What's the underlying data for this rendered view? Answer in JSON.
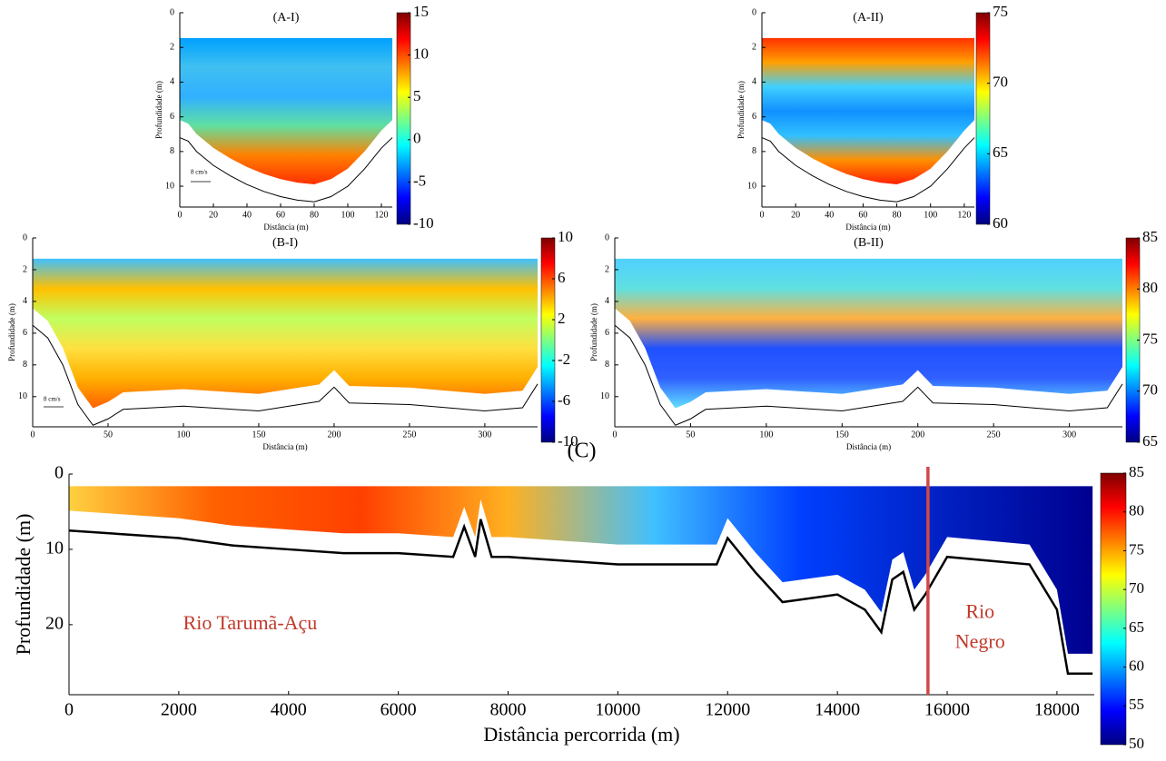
{
  "chart_data": [
    {
      "type": "heatmap",
      "title": "(A-I)",
      "xlabel": "Distância (m)",
      "ylabel": "Profundidade (m)",
      "xlim": [
        0,
        126.5
      ],
      "xticks": [
        0,
        20,
        40,
        60,
        80,
        100,
        120
      ],
      "ylim": [
        0,
        11.2
      ],
      "yticks": [
        0,
        2,
        4,
        6,
        8,
        10
      ],
      "colormap": "jet",
      "clim": [
        -10,
        15
      ],
      "cticks": [
        -10,
        -5,
        0,
        5,
        10,
        15
      ],
      "annotation": "8 cm/s",
      "bottom": {
        "x": [
          0,
          5,
          10,
          20,
          30,
          40,
          50,
          60,
          70,
          80,
          90,
          100,
          110,
          120,
          126.5
        ],
        "y": [
          7.2,
          7.4,
          8,
          8.8,
          9.4,
          9.9,
          10.3,
          10.6,
          10.8,
          10.9,
          10.6,
          10,
          9,
          7.8,
          7.2
        ]
      },
      "line_color": "#000000"
    },
    {
      "type": "heatmap",
      "title": "(A-II)",
      "xlabel": "Distância (m)",
      "ylabel": "Profundidade (m)",
      "xlim": [
        0,
        126
      ],
      "xticks": [
        0,
        20,
        40,
        60,
        80,
        100,
        120
      ],
      "ylim": [
        0,
        11.2
      ],
      "yticks": [
        0,
        2,
        4,
        6,
        8,
        10
      ],
      "colormap": "jet",
      "clim": [
        60,
        75
      ],
      "cticks": [
        60,
        65,
        70,
        75
      ],
      "bottom": {
        "x": [
          0,
          5,
          10,
          20,
          30,
          40,
          50,
          60,
          70,
          80,
          90,
          100,
          110,
          120,
          126
        ],
        "y": [
          7.2,
          7.4,
          8,
          8.8,
          9.4,
          9.9,
          10.3,
          10.6,
          10.8,
          10.9,
          10.6,
          10,
          9,
          7.8,
          7.2
        ]
      },
      "line_color": "#000000"
    },
    {
      "type": "heatmap",
      "title": "(B-I)",
      "xlabel": "Distância (m)",
      "ylabel": "Profundidade (m)",
      "xlim": [
        0,
        335
      ],
      "xticks": [
        0,
        50,
        100,
        150,
        200,
        250,
        300
      ],
      "ylim": [
        0,
        11.9
      ],
      "yticks": [
        0,
        2,
        4,
        6,
        8,
        10
      ],
      "colormap": "jet",
      "clim": [
        -10,
        10
      ],
      "cticks": [
        -10,
        -6,
        -2,
        2,
        6,
        10
      ],
      "annotation": "8 cm/s",
      "bottom": {
        "x": [
          0,
          10,
          20,
          30,
          40,
          50,
          60,
          100,
          150,
          190,
          200,
          210,
          250,
          300,
          325,
          335
        ],
        "y": [
          5.5,
          6.3,
          8,
          10.5,
          11.8,
          11.4,
          10.8,
          10.6,
          10.9,
          10.3,
          9.4,
          10.4,
          10.5,
          10.9,
          10.7,
          9.2
        ]
      },
      "line_color": "#000000"
    },
    {
      "type": "heatmap",
      "title": "(B-II)",
      "xlabel": "Distância (m)",
      "ylabel": "Profundidade (m)",
      "xlim": [
        0,
        335
      ],
      "xticks": [
        0,
        50,
        100,
        150,
        200,
        250,
        300
      ],
      "ylim": [
        0,
        11.9
      ],
      "yticks": [
        0,
        2,
        4,
        6,
        8,
        10
      ],
      "colormap": "jet",
      "clim": [
        65,
        85
      ],
      "cticks": [
        65,
        70,
        75,
        80,
        85
      ],
      "bottom": {
        "x": [
          0,
          10,
          20,
          30,
          40,
          50,
          60,
          100,
          150,
          190,
          200,
          210,
          250,
          300,
          325,
          335
        ],
        "y": [
          5.5,
          6.3,
          8,
          10.5,
          11.8,
          11.4,
          10.8,
          10.6,
          10.9,
          10.3,
          9.4,
          10.4,
          10.5,
          10.9,
          10.7,
          9.2
        ]
      },
      "line_color": "#000000"
    },
    {
      "type": "heatmap",
      "title": "(C)",
      "xlabel": "Distância percorrida (m)",
      "ylabel": "Profundidade (m)",
      "xlim": [
        0,
        18680
      ],
      "xticks": [
        0,
        2000,
        4000,
        6000,
        8000,
        10000,
        12000,
        14000,
        16000,
        18000
      ],
      "ylim": [
        0,
        29.3
      ],
      "yticks": [
        0,
        10,
        20
      ],
      "colormap": "jet",
      "clim": [
        50,
        85
      ],
      "cticks": [
        50,
        55,
        60,
        65,
        70,
        75,
        80,
        85
      ],
      "bottom": {
        "x": [
          0,
          1000,
          2000,
          3000,
          4000,
          5000,
          6000,
          7000,
          7200,
          7400,
          7500,
          7700,
          8000,
          10000,
          11800,
          12000,
          12500,
          13000,
          14000,
          14500,
          14800,
          15000,
          15200,
          15400,
          15600,
          16000,
          17500,
          18000,
          18200,
          18650
        ],
        "y": [
          7.5,
          8,
          8.5,
          9.5,
          10,
          10.5,
          10.5,
          11,
          7,
          11,
          6,
          11,
          11,
          12,
          12,
          8.5,
          13,
          17,
          16,
          18,
          21,
          14,
          13,
          18,
          16,
          11,
          12,
          18,
          26.5,
          26.5
        ]
      },
      "line_color": "#000000",
      "divider_x": 15650,
      "divider_color": "#d04848",
      "labels": [
        {
          "text": "Rio Tarumã-Açu",
          "x": 3300,
          "y": 20
        },
        {
          "text": "Rio",
          "x": 16600,
          "y": 18.5
        },
        {
          "text": "Negro",
          "x": 16600,
          "y": 22.5
        }
      ],
      "label_color": "#c0392b"
    }
  ]
}
